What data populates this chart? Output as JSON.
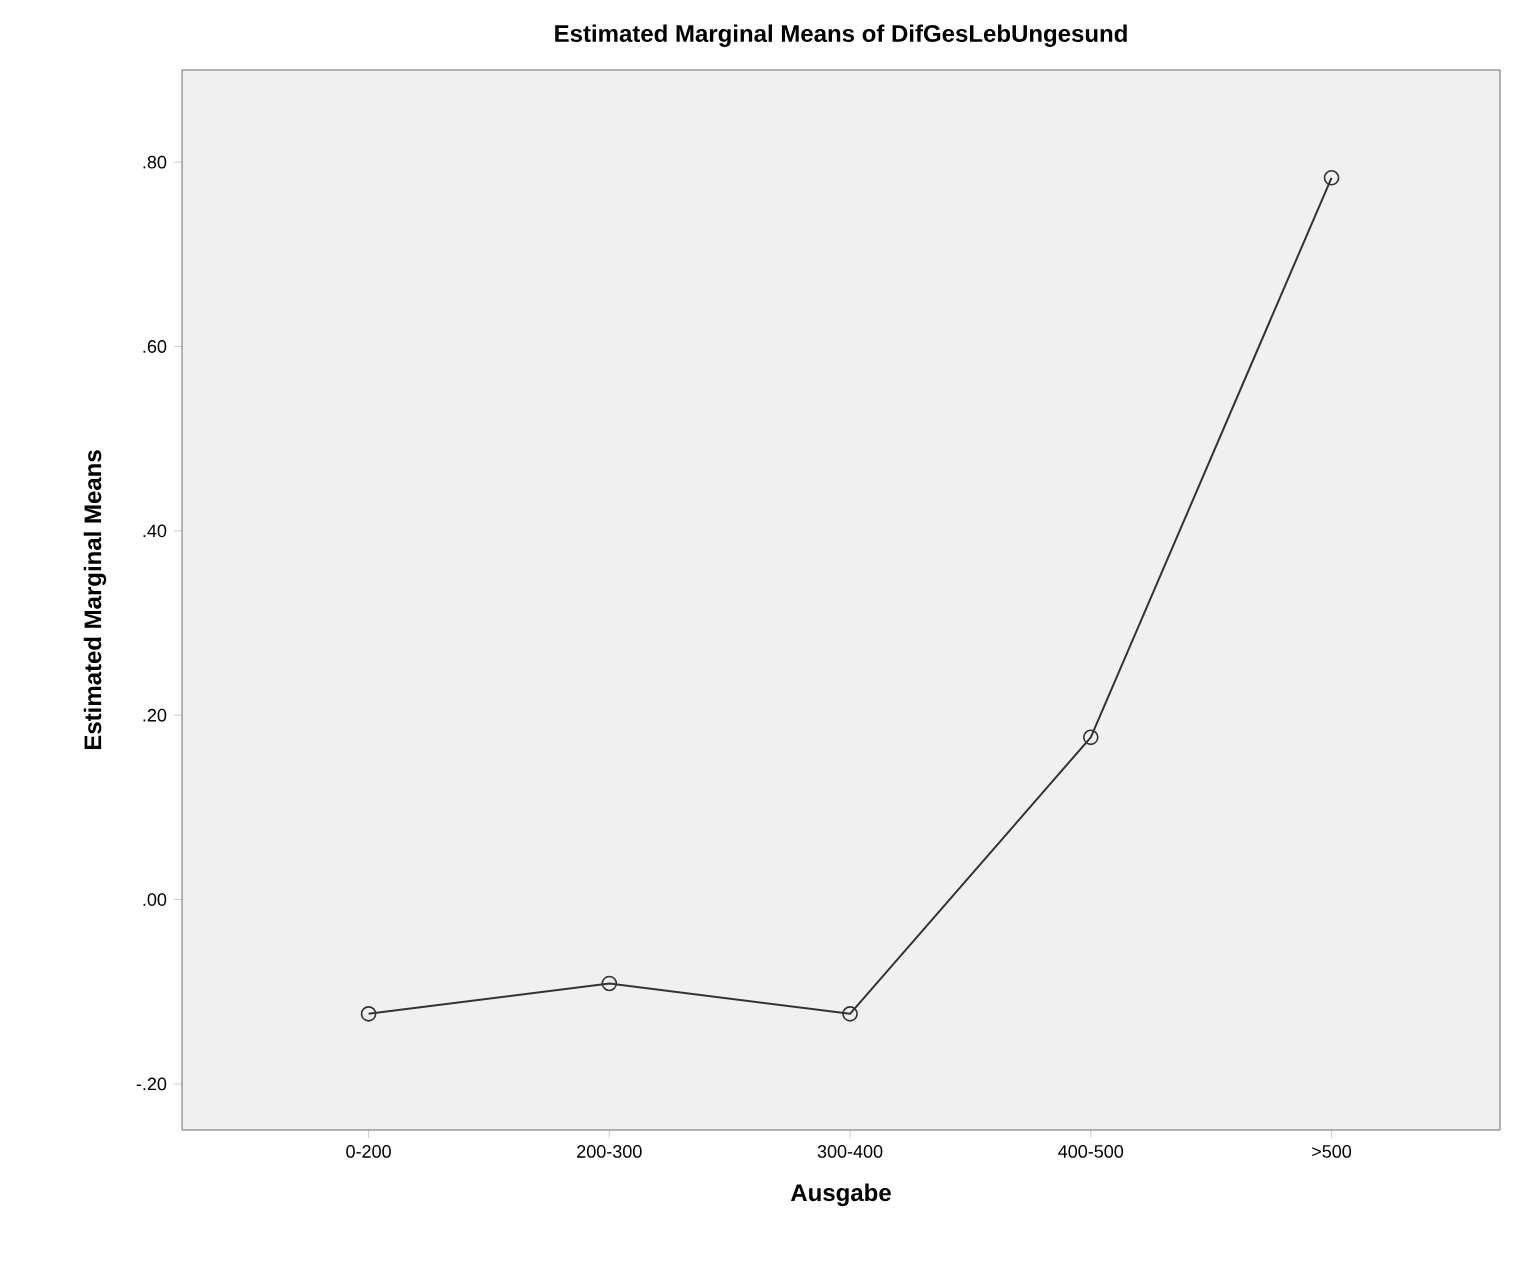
{
  "chart_data": {
    "type": "line",
    "title": "Estimated Marginal Means of DifGesLebUngesund",
    "xlabel": "Ausgabe",
    "ylabel": "Estimated Marginal Means",
    "categories": [
      "0-200",
      "200-300",
      "300-400",
      "400-500",
      ">500"
    ],
    "values": [
      -0.124,
      -0.091,
      -0.124,
      0.176,
      0.783
    ],
    "color": "#333333",
    "marker": "circle",
    "line_style": "solid",
    "ylim": [
      -0.25,
      0.9
    ],
    "yticks": [
      {
        "value": -0.2,
        "label": "-.20"
      },
      {
        "value": 0.0,
        "label": ".00"
      },
      {
        "value": 0.2,
        "label": ".20"
      },
      {
        "value": 0.4,
        "label": ".40"
      },
      {
        "value": 0.6,
        "label": ".60"
      },
      {
        "value": 0.8,
        "label": ".80"
      }
    ]
  }
}
